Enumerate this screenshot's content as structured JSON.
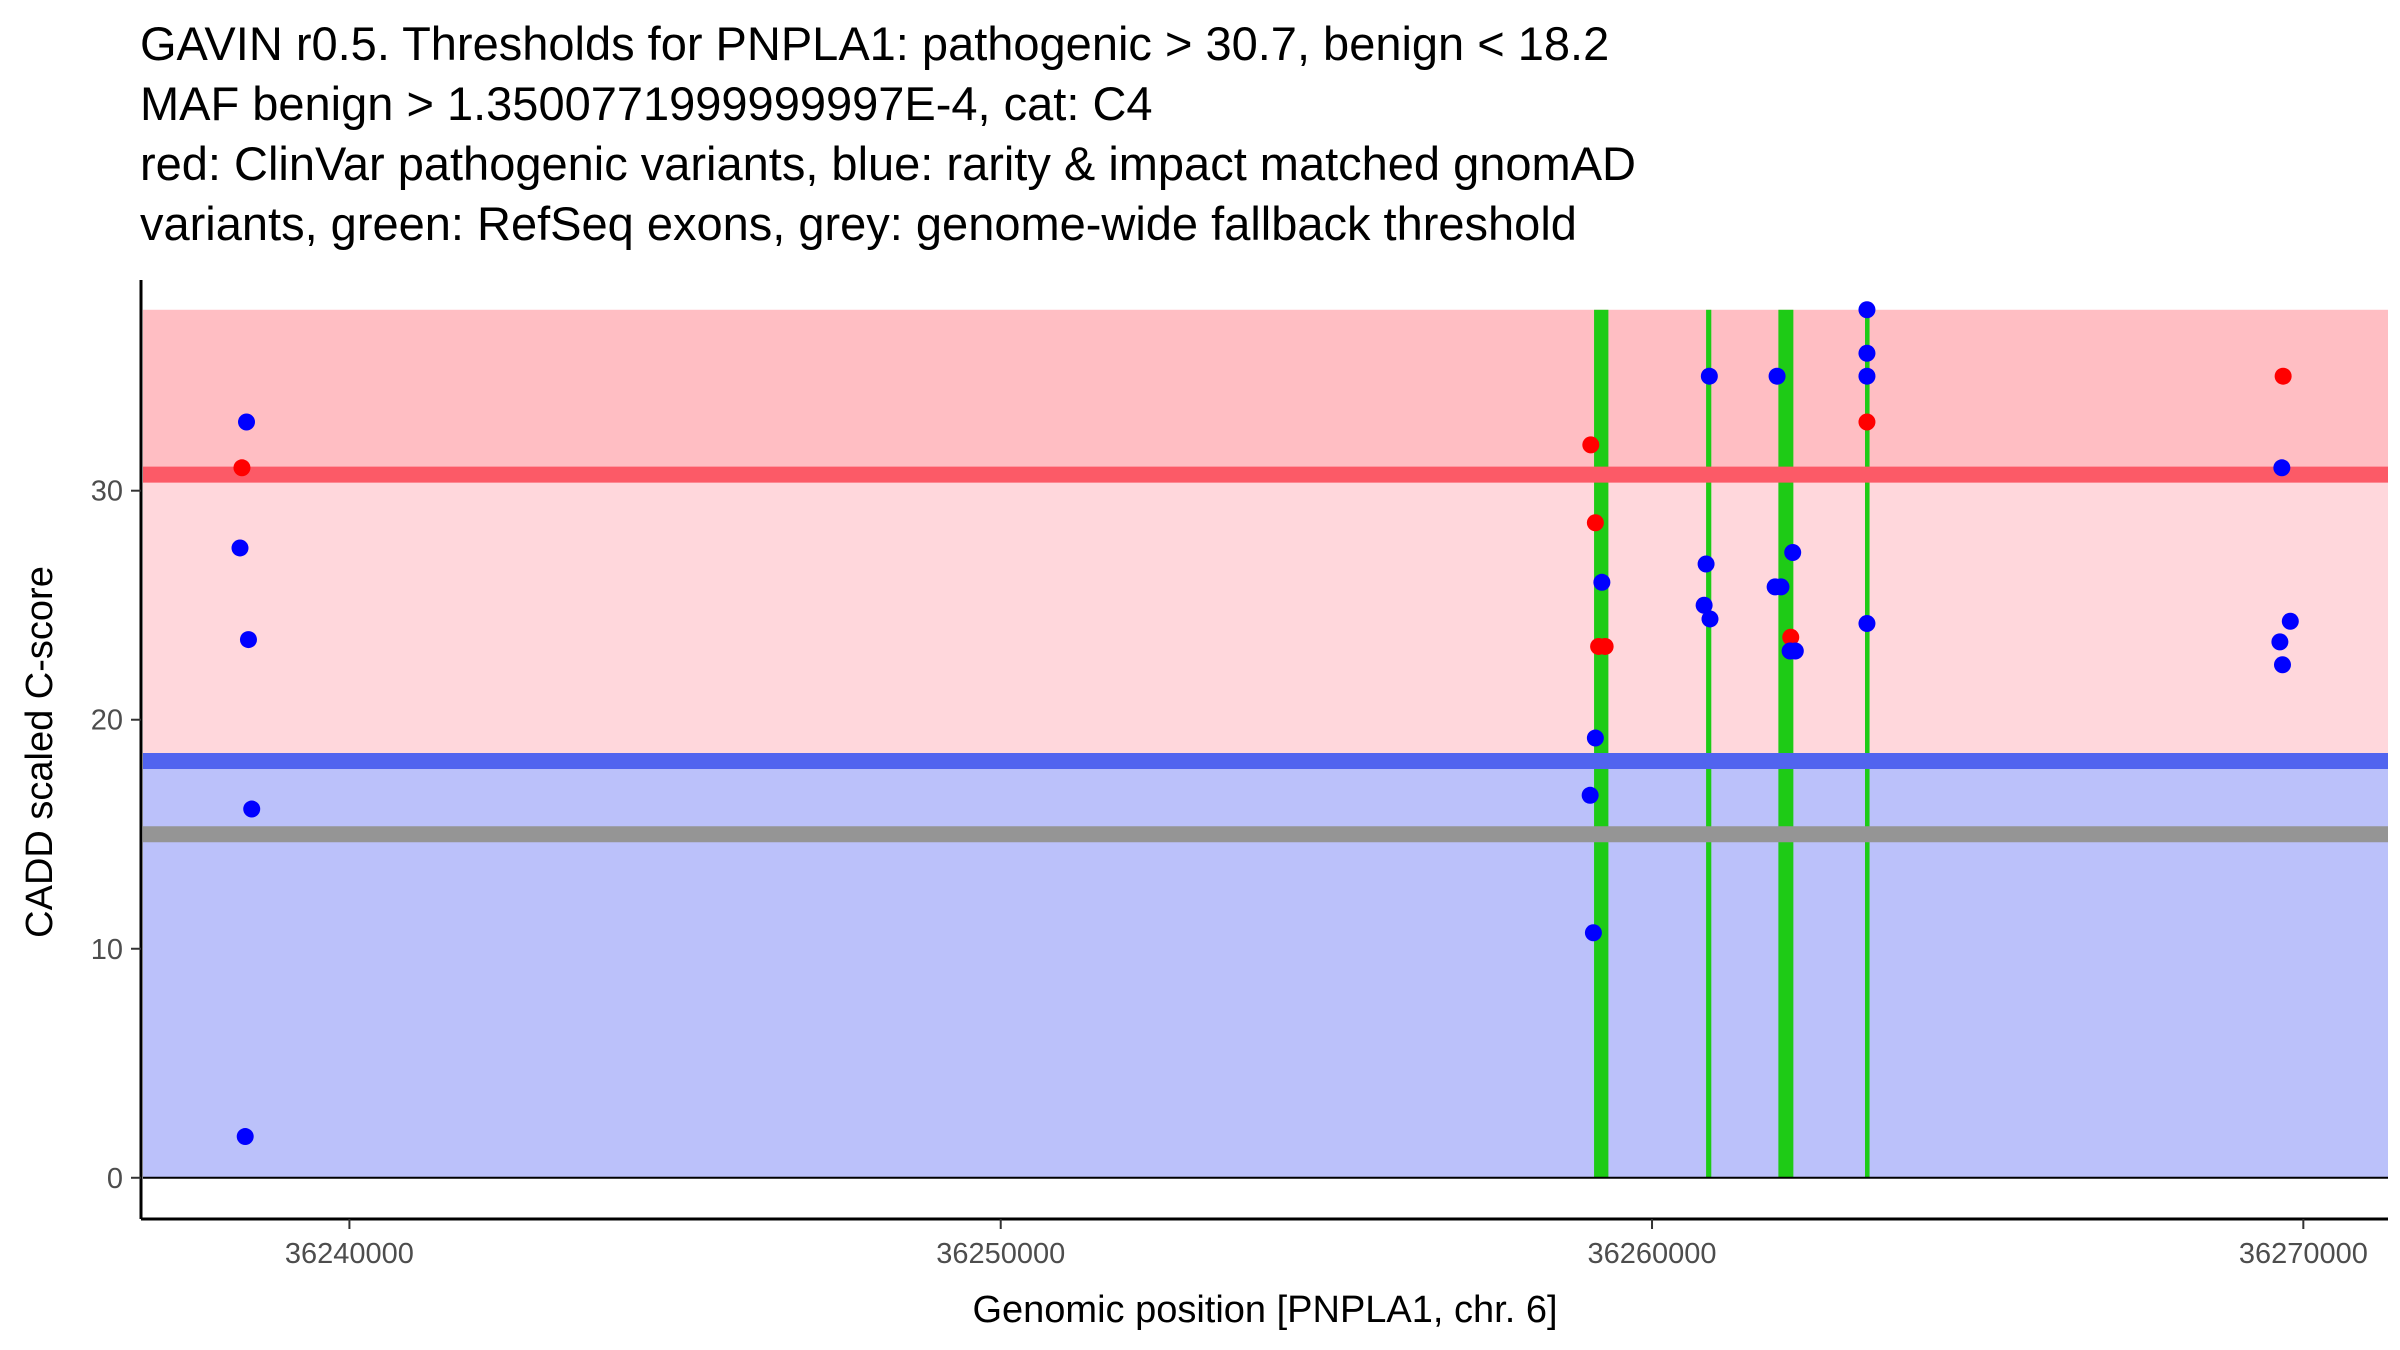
{
  "chart_data": {
    "type": "scatter",
    "title_lines": [
      "GAVIN r0.5. Thresholds for PNPLA1: pathogenic > 30.7, benign < 18.2",
      "MAF benign > 1.3500771999999997E-4, cat: C4",
      "red: ClinVar pathogenic variants, blue: rarity & impact matched gnomAD",
      "variants, green: RefSeq exons, grey: genome-wide fallback threshold"
    ],
    "xlabel": "Genomic position [PNPLA1, chr. 6]",
    "ylabel": "CADD scaled C-score",
    "xlim": [
      36236800,
      36271300
    ],
    "ylim": [
      -1.8,
      39.2
    ],
    "x_ticks": [
      36240000,
      36250000,
      36260000,
      36270000
    ],
    "x_tick_labels": [
      "36240000",
      "36250000",
      "36260000",
      "36270000"
    ],
    "y_ticks": [
      0,
      10,
      20,
      30
    ],
    "y_tick_labels": [
      "0",
      "10",
      "20",
      "30"
    ],
    "grid": false,
    "thresholds": {
      "pathogenic": 30.7,
      "benign": 18.2,
      "fallback": 15.0,
      "band_top": 37.9,
      "band_bottom": 0.0
    },
    "exons": [
      {
        "start": 36259110,
        "end": 36259330
      },
      {
        "start": 36260830,
        "end": 36260910
      },
      {
        "start": 36261940,
        "end": 36262170
      },
      {
        "start": 36263270,
        "end": 36263340
      }
    ],
    "series": [
      {
        "name": "ClinVar pathogenic",
        "color": "#ff0000",
        "points": [
          {
            "x": 36238350,
            "y": 31.0
          },
          {
            "x": 36259060,
            "y": 32.0
          },
          {
            "x": 36259130,
            "y": 28.6
          },
          {
            "x": 36259180,
            "y": 23.2
          },
          {
            "x": 36259280,
            "y": 23.2
          },
          {
            "x": 36262130,
            "y": 23.6
          },
          {
            "x": 36263300,
            "y": 33.0
          },
          {
            "x": 36269690,
            "y": 35.0
          }
        ]
      },
      {
        "name": "gnomAD matched",
        "color": "#0000ff",
        "points": [
          {
            "x": 36238420,
            "y": 33.0
          },
          {
            "x": 36238320,
            "y": 27.5
          },
          {
            "x": 36238450,
            "y": 23.5
          },
          {
            "x": 36238500,
            "y": 16.1
          },
          {
            "x": 36238400,
            "y": 1.8
          },
          {
            "x": 36259230,
            "y": 26.0
          },
          {
            "x": 36259130,
            "y": 19.2
          },
          {
            "x": 36259050,
            "y": 16.7
          },
          {
            "x": 36259100,
            "y": 10.7
          },
          {
            "x": 36260880,
            "y": 35.0
          },
          {
            "x": 36260830,
            "y": 26.8
          },
          {
            "x": 36260800,
            "y": 25.0
          },
          {
            "x": 36260890,
            "y": 24.4
          },
          {
            "x": 36261920,
            "y": 35.0
          },
          {
            "x": 36261890,
            "y": 25.8
          },
          {
            "x": 36261980,
            "y": 25.8
          },
          {
            "x": 36262160,
            "y": 27.3
          },
          {
            "x": 36262120,
            "y": 23.0
          },
          {
            "x": 36262200,
            "y": 23.0
          },
          {
            "x": 36263300,
            "y": 37.9
          },
          {
            "x": 36263300,
            "y": 36.0
          },
          {
            "x": 36263300,
            "y": 35.0
          },
          {
            "x": 36263300,
            "y": 24.2
          },
          {
            "x": 36269670,
            "y": 31.0
          },
          {
            "x": 36269640,
            "y": 23.4
          },
          {
            "x": 36269680,
            "y": 22.4
          },
          {
            "x": 36269800,
            "y": 24.3
          }
        ]
      }
    ],
    "colors": {
      "pathogenic_band": "#ffbec3",
      "middle_band": "#ffd7dc",
      "benign_band": "#bbc1fa",
      "pathogenic_line": "#fc5a67",
      "benign_line": "#5164ef",
      "fallback_line": "#959595",
      "exon": "#1ecb16",
      "zero_line": "#000000",
      "axis": "#000000"
    }
  }
}
